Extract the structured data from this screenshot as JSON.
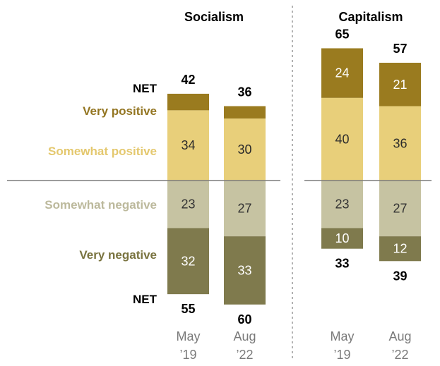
{
  "colors": {
    "very_positive": "#9a7b1f",
    "somewhat_positive": "#e8cf7a",
    "somewhat_negative": "#c6c3a2",
    "very_negative": "#7f7a4d",
    "very_positive_label": "#937521",
    "somewhat_positive_label": "#e4c86e",
    "somewhat_negative_label": "#bcb99c",
    "very_negative_label": "#79733f",
    "baseline": "#7b7b7b",
    "divider": "#7f7f7f",
    "axis_text": "#7a7a7a"
  },
  "row_labels": {
    "net_top": "NET",
    "very_positive": "Very positive",
    "somewhat_positive": "Somewhat positive",
    "somewhat_negative": "Somewhat negative",
    "very_negative": "Very negative",
    "net_bottom": "NET"
  },
  "chart_data": [
    {
      "type": "bar",
      "title": "Socialism",
      "categories": [
        [
          "May",
          "’19"
        ],
        [
          "Aug",
          "’22"
        ]
      ],
      "net_positive": [
        42,
        36
      ],
      "net_negative": [
        55,
        60
      ],
      "series": [
        {
          "name": "Very positive",
          "key": "very_positive",
          "values": [
            8,
            6
          ],
          "labeled": false
        },
        {
          "name": "Somewhat positive",
          "key": "somewhat_positive",
          "values": [
            34,
            30
          ],
          "labeled": true
        },
        {
          "name": "Somewhat negative",
          "key": "somewhat_negative",
          "values": [
            23,
            27
          ],
          "labeled": true
        },
        {
          "name": "Very negative",
          "key": "very_negative",
          "values": [
            32,
            33
          ],
          "labeled": true
        }
      ]
    },
    {
      "type": "bar",
      "title": "Capitalism",
      "categories": [
        [
          "May",
          "’19"
        ],
        [
          "Aug",
          "’22"
        ]
      ],
      "net_positive": [
        65,
        57
      ],
      "net_negative": [
        33,
        39
      ],
      "series": [
        {
          "name": "Very positive",
          "key": "very_positive",
          "values": [
            24,
            21
          ],
          "labeled": true
        },
        {
          "name": "Somewhat positive",
          "key": "somewhat_positive",
          "values": [
            40,
            36
          ],
          "labeled": true
        },
        {
          "name": "Somewhat negative",
          "key": "somewhat_negative",
          "values": [
            23,
            27
          ],
          "labeled": true
        },
        {
          "name": "Very negative",
          "key": "very_negative",
          "values": [
            10,
            12
          ],
          "labeled": true
        }
      ]
    }
  ]
}
